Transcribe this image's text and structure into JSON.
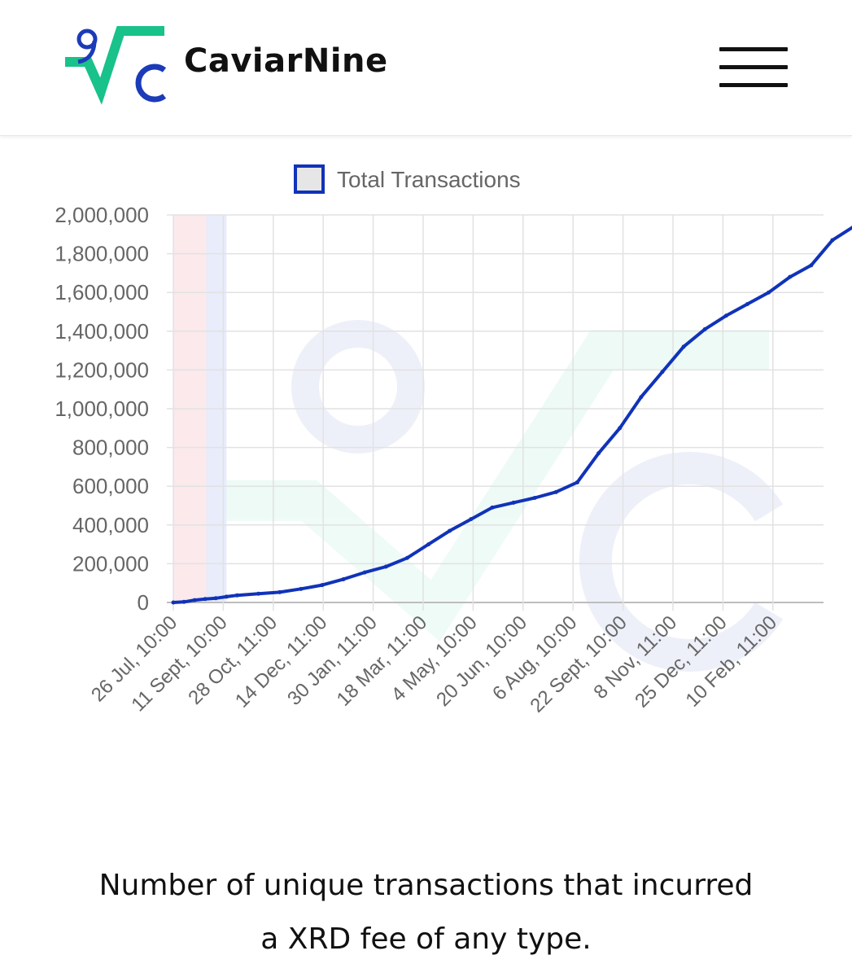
{
  "header": {
    "brand_name": "CaviarNine",
    "logo_icon": "caviarnine-logo-icon",
    "menu_icon": "hamburger-menu-icon"
  },
  "colors": {
    "line": "#1033b8",
    "logo_green": "#18c28a",
    "logo_blue": "#1b3bb8",
    "shade_red": "#fbe9ec",
    "shade_blue": "#e8ecfb"
  },
  "chart_data": {
    "type": "line",
    "legend": [
      "Total Transactions"
    ],
    "legend_position": "top",
    "grid": true,
    "ylim": [
      0,
      2000000
    ],
    "y_ticks": [
      "2,000,000",
      "1,800,000",
      "1,600,000",
      "1,400,000",
      "1,200,000",
      "1,000,000",
      "800,000",
      "600,000",
      "400,000",
      "200,000",
      "0"
    ],
    "x_ticks": [
      "26 Jul, 10:00",
      "11 Sept, 10:00",
      "28 Oct, 11:00",
      "14 Dec, 11:00",
      "30 Jan, 11:00",
      "18 Mar, 11:00",
      "4 May, 10:00",
      "20 Jun, 10:00",
      "6 Aug, 10:00",
      "22 Sept, 10:00",
      "8 Nov, 11:00",
      "25 Dec, 11:00",
      "10 Feb, 11:00"
    ],
    "x_tick_interval_days": 47,
    "shaded_ranges_days": [
      [
        0,
        31
      ],
      [
        31,
        50
      ]
    ],
    "series": [
      {
        "name": "Total Transactions",
        "x_days": [
          0,
          10,
          20,
          30,
          40,
          50,
          60,
          80,
          100,
          120,
          140,
          160,
          180,
          200,
          220,
          240,
          260,
          280,
          300,
          320,
          340,
          360,
          380,
          400,
          420,
          440,
          460,
          480,
          500,
          520,
          540,
          560,
          580,
          600,
          620,
          640,
          650
        ],
        "values": [
          0,
          3000,
          12000,
          18000,
          22000,
          30000,
          37000,
          45000,
          53000,
          70000,
          90000,
          120000,
          155000,
          185000,
          230000,
          300000,
          370000,
          430000,
          490000,
          515000,
          540000,
          570000,
          620000,
          770000,
          900000,
          1060000,
          1190000,
          1320000,
          1410000,
          1480000,
          1540000,
          1600000,
          1680000,
          1740000,
          1870000,
          1940000,
          1990000
        ]
      }
    ]
  },
  "caption": {
    "line1": "Number of unique transactions that incurred",
    "line2": "a XRD fee of any type."
  }
}
